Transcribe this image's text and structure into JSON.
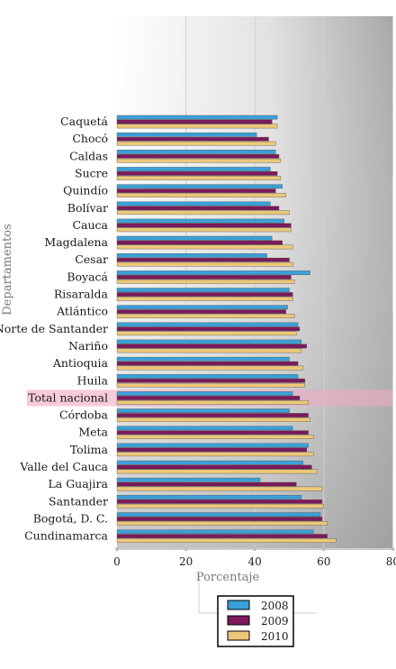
{
  "chart_data": {
    "type": "bar",
    "orientation": "horizontal",
    "xlabel": "Porcentaje",
    "ylabel": "Departamentos",
    "xlim": [
      0,
      80
    ],
    "xticks": [
      "0",
      "20",
      "40",
      "60",
      "80"
    ],
    "legend_position": "bottom",
    "grid": true,
    "highlight_category": "Total nacional",
    "categories": [
      "Caquetá",
      "Chocó",
      "Caldas",
      "Sucre",
      "Quindío",
      "Bolívar",
      "Cauca",
      "Magdalena",
      "Cesar",
      "Boyacá",
      "Risaralda",
      "Atlántico",
      "Norte de Santander",
      "Nariño",
      "Antioquia",
      "Huila",
      "Total nacional",
      "Córdoba",
      "Meta",
      "Tolima",
      "Valle del Cauca",
      "La Guajira",
      "Santander",
      "Bogotá, D. C.",
      "Cundinamarca"
    ],
    "series": [
      {
        "name": "2008",
        "color": "#3aa0d8",
        "values": [
          46.5,
          40.5,
          46,
          44.5,
          48,
          44.5,
          48.5,
          45,
          43.5,
          56,
          50,
          49.5,
          52.5,
          53.5,
          50,
          52.5,
          51,
          50,
          51,
          55.5,
          54,
          41.5,
          53.5,
          59,
          57
        ]
      },
      {
        "name": "2009",
        "color": "#7a1a5a",
        "values": [
          45,
          44,
          47,
          46.5,
          46,
          47,
          50.5,
          48,
          50,
          50.5,
          51,
          49,
          53,
          55,
          52.5,
          54.5,
          53,
          55.5,
          55.5,
          55,
          56.5,
          52,
          59.5,
          59.5,
          61
        ]
      },
      {
        "name": "2010",
        "color": "#ecc878",
        "values": [
          46.5,
          46,
          47.5,
          47.5,
          49,
          50,
          50.5,
          51,
          51,
          51.5,
          51,
          51.5,
          52,
          53.5,
          54,
          54.5,
          55.5,
          56,
          57,
          57,
          58,
          59.5,
          60,
          61,
          63.5
        ]
      }
    ]
  }
}
